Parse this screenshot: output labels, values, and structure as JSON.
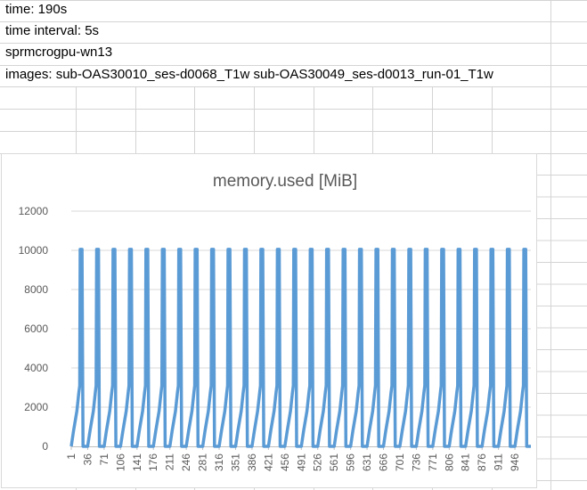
{
  "sheet": {
    "rows": [
      {
        "text": "time: 190s"
      },
      {
        "text": "time interval: 5s"
      },
      {
        "text": "sprmcrogpu-wn13"
      },
      {
        "text": "images: sub-OAS30010_ses-d0068_T1w sub-OAS30049_ses-d0013_run-01_T1w"
      }
    ]
  },
  "chart_data": {
    "type": "line",
    "title": "memory.used [MiB]",
    "xlabel": "",
    "ylabel": "",
    "x_range": [
      1,
      980
    ],
    "ylim": [
      0,
      12000
    ],
    "yticks": [
      0,
      2000,
      4000,
      6000,
      8000,
      10000,
      12000
    ],
    "ytick_labels": [
      "0",
      "2000",
      "4000",
      "6000",
      "8000",
      "10000",
      "12000"
    ],
    "xtick_labels": [
      "1",
      "36",
      "71",
      "106",
      "141",
      "176",
      "211",
      "246",
      "281",
      "316",
      "351",
      "386",
      "421",
      "456",
      "491",
      "526",
      "561",
      "596",
      "631",
      "666",
      "701",
      "736",
      "771",
      "806",
      "841",
      "876",
      "911",
      "946"
    ],
    "grid": true,
    "legend": "none",
    "color": "#5b9bd5",
    "series": [
      {
        "values_description_free": true,
        "cycle_period_x": 35,
        "cycle_count": 28,
        "cycle_shape": [
          {
            "dx": 0,
            "y": 0
          },
          {
            "dx": 5,
            "y": 800
          },
          {
            "dx": 12,
            "y": 1800
          },
          {
            "dx": 16,
            "y": 2700
          },
          {
            "dx": 18,
            "y": 3100
          },
          {
            "dx": 19,
            "y": 10050
          },
          {
            "dx": 23,
            "y": 10050
          },
          {
            "dx": 25,
            "y": 0
          },
          {
            "dx": 35,
            "y": 0
          }
        ]
      }
    ]
  }
}
